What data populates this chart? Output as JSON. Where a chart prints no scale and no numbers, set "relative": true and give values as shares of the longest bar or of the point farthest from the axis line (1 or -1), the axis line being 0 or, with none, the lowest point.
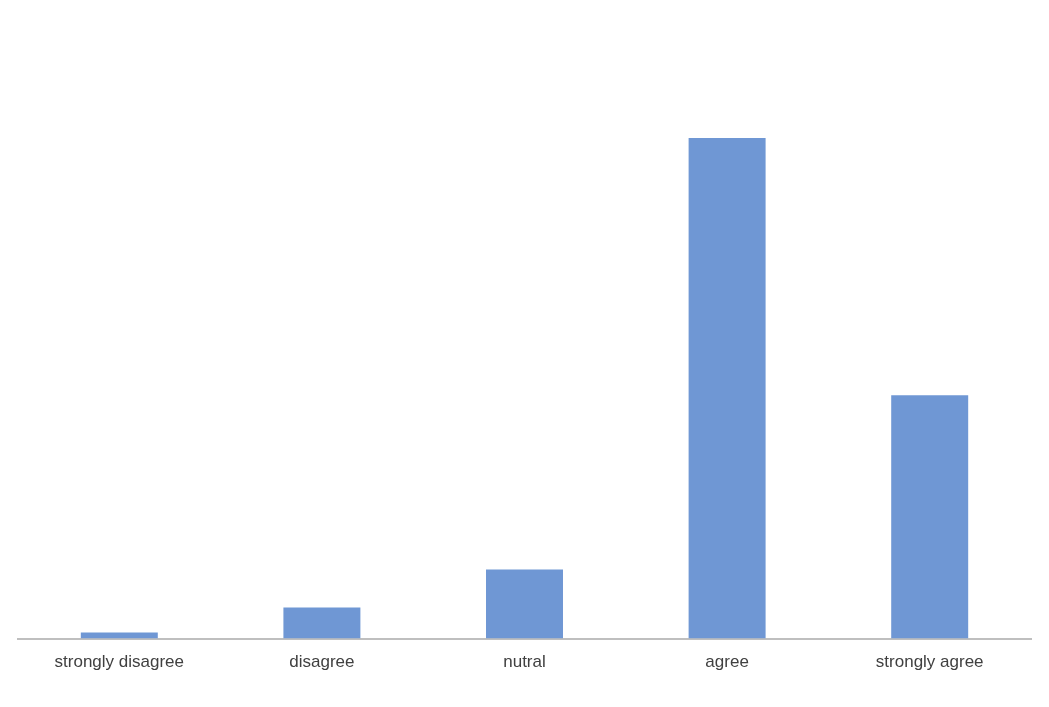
{
  "chart_data": {
    "type": "bar",
    "relative": true,
    "categories": [
      "strongly disagree",
      "disagree",
      "nutral",
      "agree",
      "strongly agree"
    ],
    "values": [
      0.012,
      0.062,
      0.138,
      1,
      0.486
    ],
    "color": "#6f97d4",
    "grid": false,
    "legend": false
  }
}
